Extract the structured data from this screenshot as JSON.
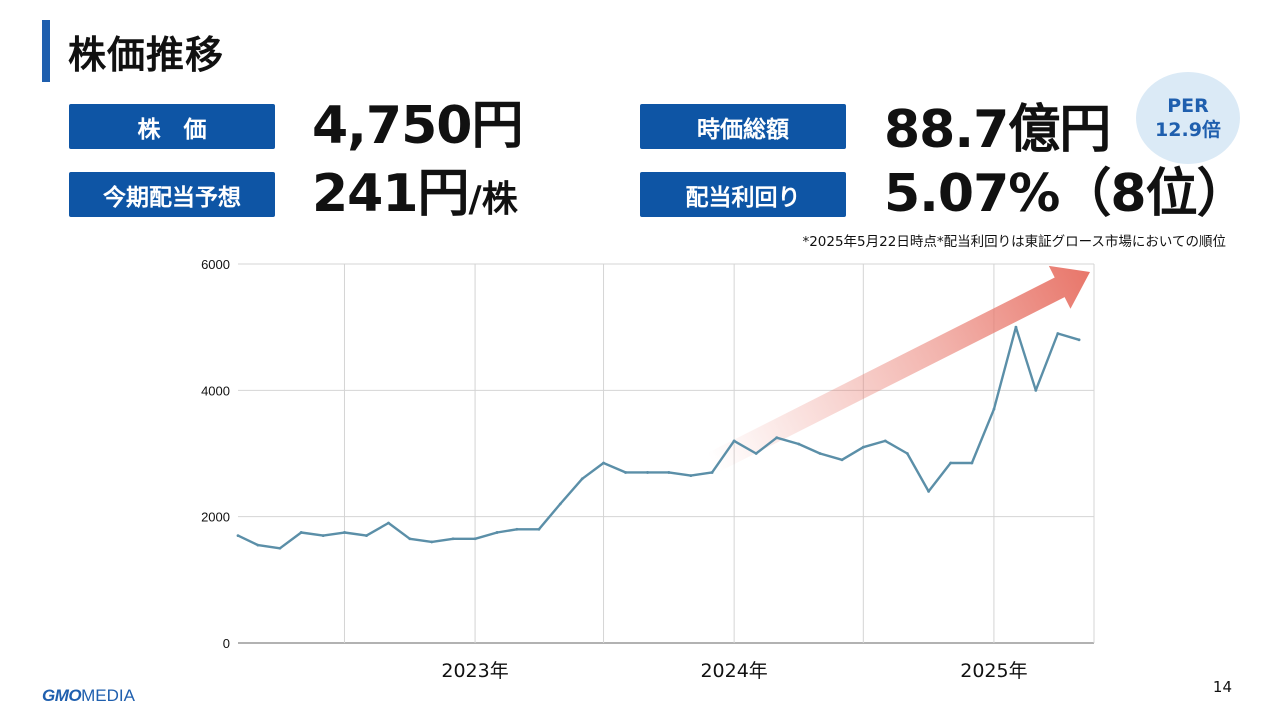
{
  "page_title": "株価推移",
  "metrics": {
    "stock_price": {
      "label": "株　価",
      "value": "4,750円",
      "unit": ""
    },
    "dividend": {
      "label": "今期配当予想",
      "value": "241円",
      "unit": "/株"
    },
    "market_cap": {
      "label": "時価総額",
      "value": "88.7億円",
      "unit": ""
    },
    "yield": {
      "label": "配当利回り",
      "value": "5.07%（8位）",
      "unit": ""
    }
  },
  "per_badge": {
    "line1": "PER",
    "line2": "12.9倍"
  },
  "note": "*2025年5月22日時点*配当利回りは東証グロース市場においての順位",
  "chart_data": {
    "type": "line",
    "title": "",
    "xlabel": "",
    "ylabel": "",
    "ylim": [
      0,
      6000
    ],
    "y_ticks": [
      0,
      2000,
      4000,
      6000
    ],
    "x_ticks": [
      "2023年",
      "2024年",
      "2025年"
    ],
    "x_tick_positions": [
      "2023-01",
      "2024-01",
      "2025-01"
    ],
    "grid": true,
    "x": [
      "2022-02",
      "2022-03",
      "2022-04",
      "2022-05",
      "2022-06",
      "2022-07",
      "2022-08",
      "2022-09",
      "2022-10",
      "2022-11",
      "2022-12",
      "2023-01",
      "2023-02",
      "2023-03",
      "2023-04",
      "2023-05",
      "2023-06",
      "2023-07",
      "2023-08",
      "2023-09",
      "2023-10",
      "2023-11",
      "2023-12",
      "2024-01",
      "2024-02",
      "2024-03",
      "2024-04",
      "2024-05",
      "2024-06",
      "2024-07",
      "2024-08",
      "2024-09",
      "2024-10",
      "2024-11",
      "2024-12",
      "2025-01",
      "2025-02",
      "2025-03",
      "2025-04",
      "2025-05"
    ],
    "series": [
      {
        "values": [
          1700,
          1550,
          1500,
          1750,
          1700,
          1750,
          1700,
          1900,
          1650,
          1600,
          1650,
          1650,
          1750,
          1800,
          1800,
          2200,
          2600,
          2850,
          2700,
          2700,
          2700,
          2650,
          2700,
          3200,
          3000,
          3250,
          3150,
          3000,
          2900,
          3100,
          3200,
          3000,
          2400,
          2850,
          2850,
          3700,
          5000,
          4000,
          4900,
          4800
        ]
      }
    ],
    "trend_arrow": {
      "from": "2023-12",
      "to": "2025-05",
      "color": "#e8766a"
    },
    "line_color": "#5b8fa8"
  },
  "footer": {
    "logo_bold": "GMO",
    "logo_rest": "MEDIA",
    "page_number": "14"
  },
  "colors": {
    "accent": "#0e55a5",
    "title_bar": "#1f5fae",
    "badge_bg": "#dbeaf6"
  }
}
